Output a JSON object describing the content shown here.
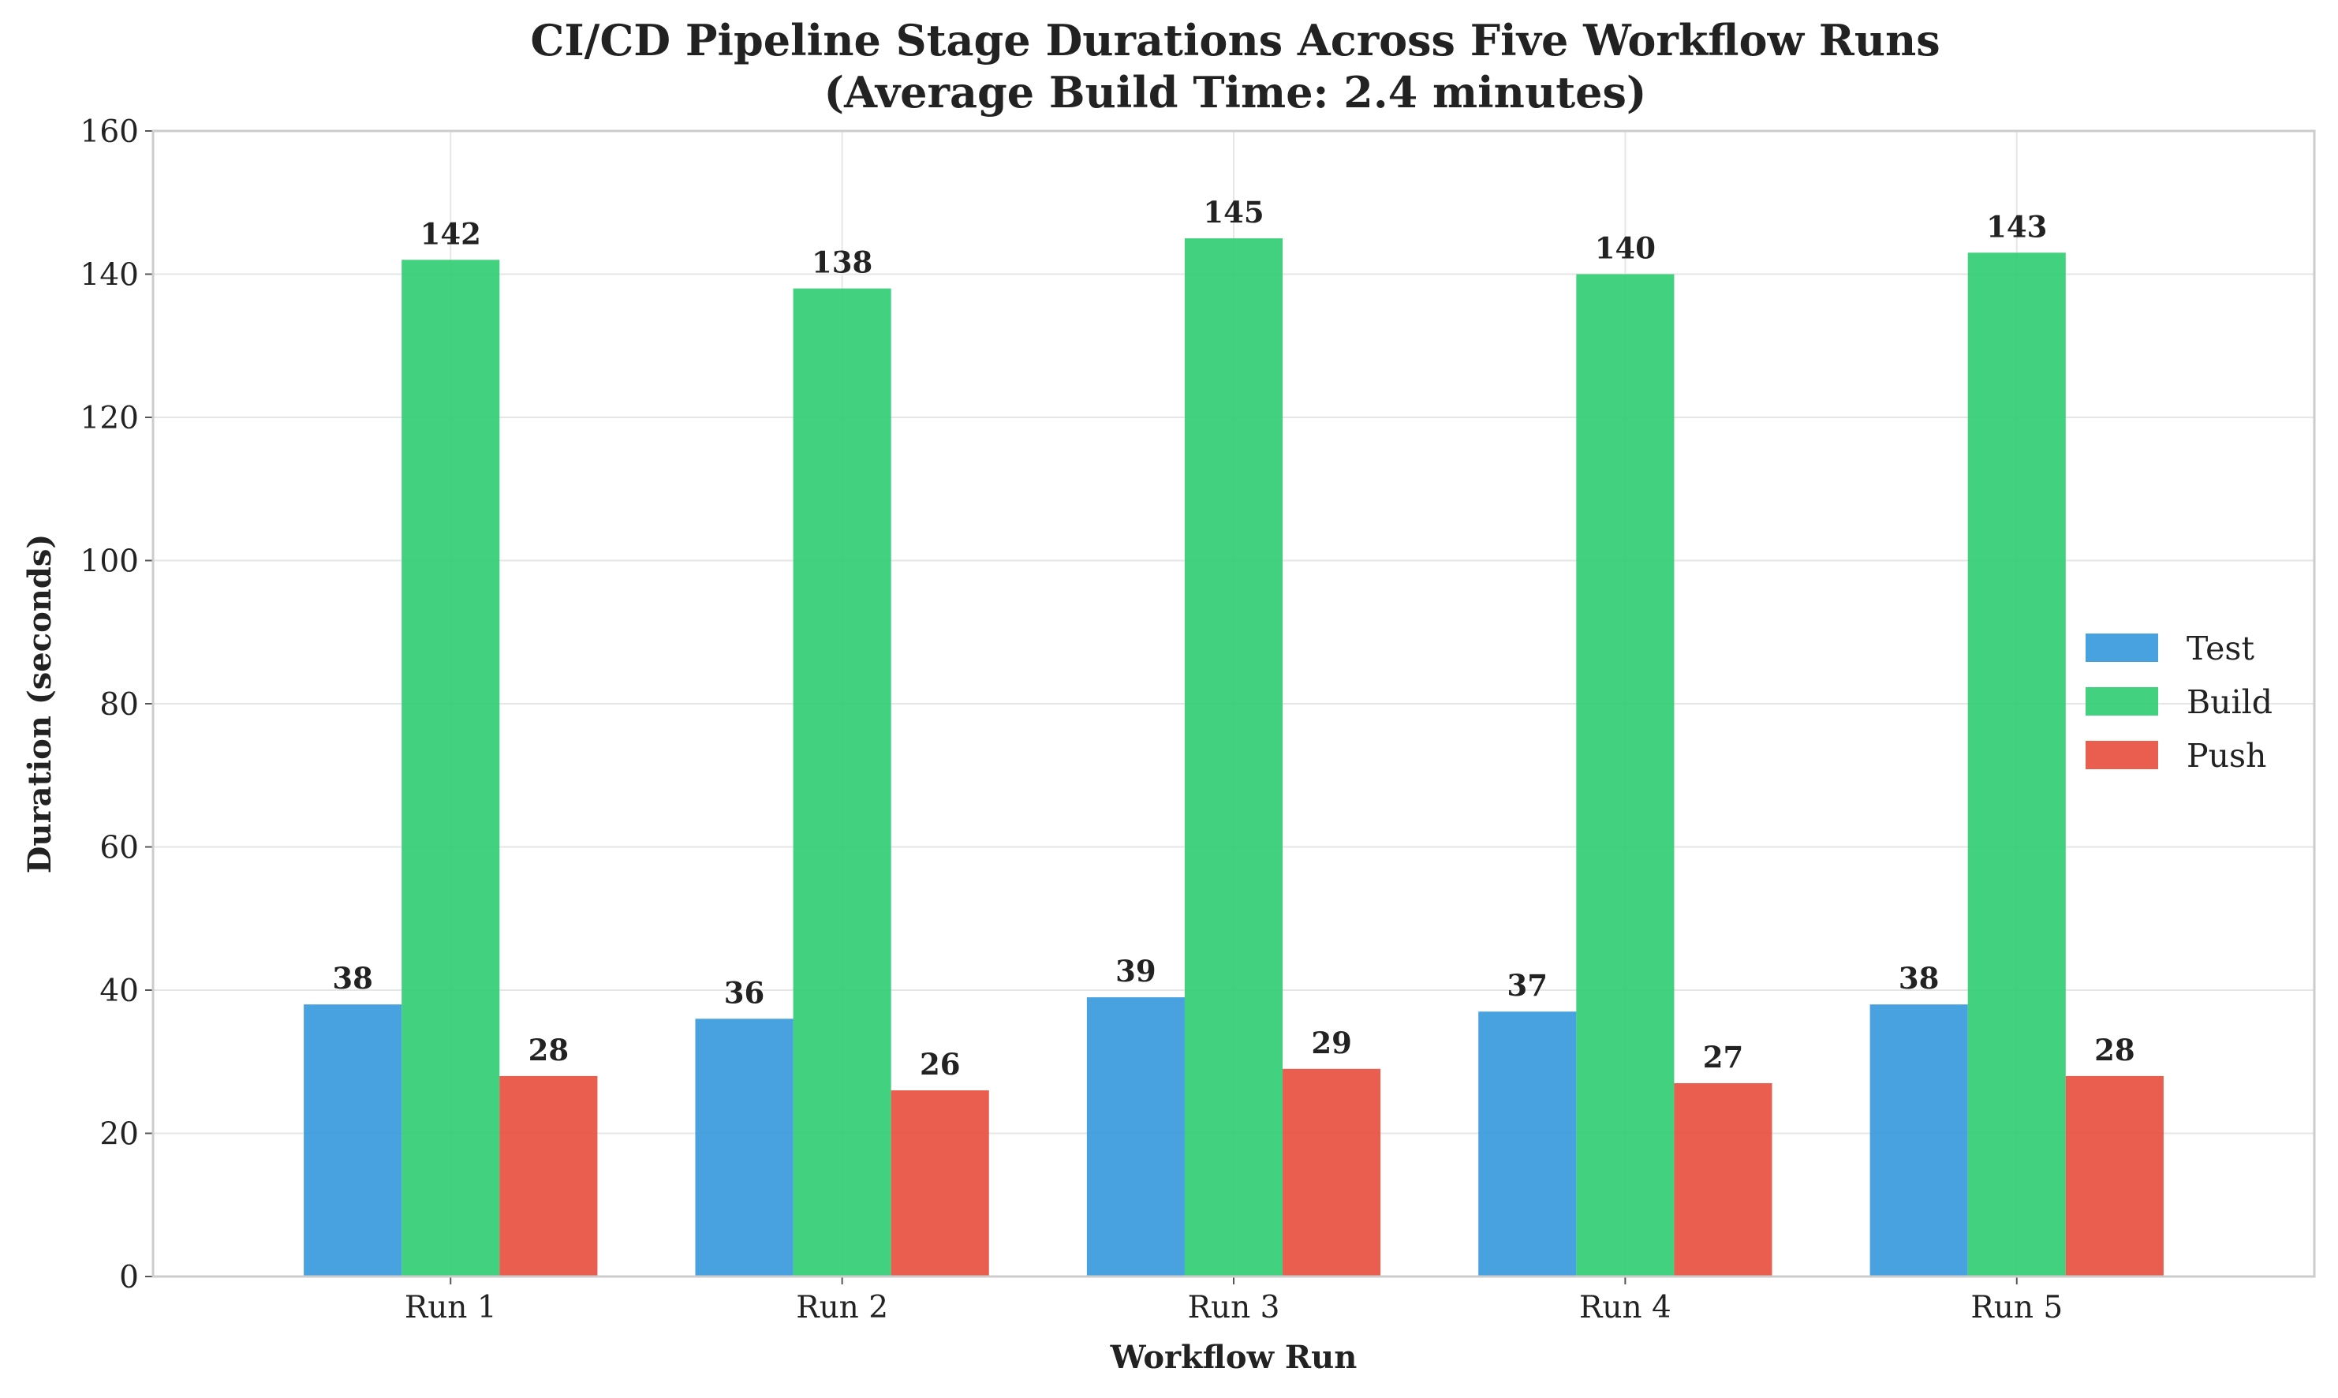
{
  "chart_data": {
    "type": "bar",
    "title": "CI/CD Pipeline Stage Durations Across Five Workflow Runs",
    "subtitle": "(Average Build Time: 2.4 minutes)",
    "xlabel": "Workflow Run",
    "ylabel": "Duration (seconds)",
    "categories": [
      "Run 1",
      "Run 2",
      "Run 3",
      "Run 4",
      "Run 5"
    ],
    "series": [
      {
        "name": "Test",
        "color": "#3498db",
        "values": [
          38,
          36,
          39,
          37,
          38
        ]
      },
      {
        "name": "Build",
        "color": "#2ecc71",
        "values": [
          142,
          138,
          145,
          140,
          143
        ]
      },
      {
        "name": "Push",
        "color": "#e74c3c",
        "values": [
          28,
          26,
          29,
          27,
          28
        ]
      }
    ],
    "ylim": [
      0,
      160
    ],
    "yticks": [
      0,
      20,
      40,
      60,
      80,
      100,
      120,
      140,
      160
    ],
    "grid": true,
    "legend_position": "center-right",
    "data_labels": true
  }
}
